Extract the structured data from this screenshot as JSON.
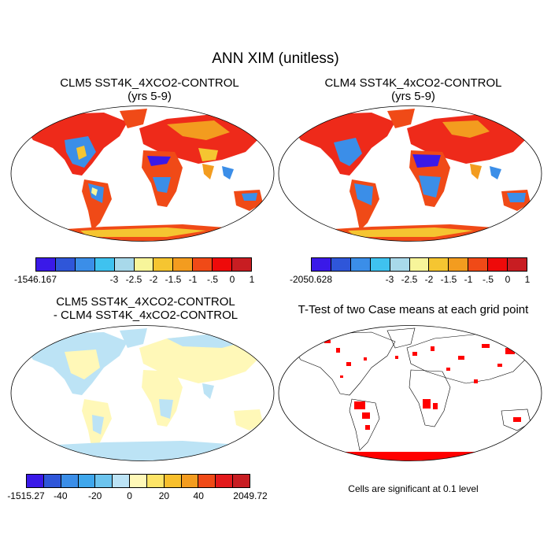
{
  "title": "ANN XIM (unitless)",
  "panels": {
    "p1": {
      "title1": "CLM5 SST4K_4XCO2-CONTROL",
      "title2": "(yrs 5-9)"
    },
    "p2": {
      "title1": "CLM4 SST4K_4xCO2-CONTROL",
      "title2": "(yrs 5-9)"
    },
    "p3": {
      "title1": "CLM5 SST4K_4XCO2-CONTROL",
      "title2": "- CLM4 SST4K_4xCO2-CONTROL"
    },
    "p4": {
      "title1": "T-Test of two Case means at each grid point",
      "note": "Cells are significant at 0.1 level"
    }
  },
  "colorbars": {
    "cb1": {
      "colors": [
        "#3a19e8",
        "#2f56d9",
        "#3b8ee8",
        "#3fc2ef",
        "#a8d9ea",
        "#f7f59a",
        "#f5c531",
        "#f39c1f",
        "#f04a17",
        "#ee0a0a",
        "#c81d22"
      ],
      "labels": [
        "-1546.167",
        "-3",
        "-2.5",
        "-2",
        "-1.5",
        "-1",
        "-.5",
        "0",
        "1"
      ]
    },
    "cb2": {
      "colors": [
        "#3a19e8",
        "#2f56d9",
        "#3b8ee8",
        "#3fc2ef",
        "#a8d9ea",
        "#f7f59a",
        "#f5c531",
        "#f39c1f",
        "#f04a17",
        "#ee0a0a",
        "#c81d22"
      ],
      "labels": [
        "-2050.628",
        "-3",
        "-2.5",
        "-2",
        "-1.5",
        "-1",
        "-.5",
        "0",
        "1"
      ]
    },
    "cb3": {
      "colors": [
        "#3a19e8",
        "#2f56d9",
        "#3b8ee8",
        "#3fa7ec",
        "#6cc4ee",
        "#bce3f5",
        "#fff8b8",
        "#fde467",
        "#f8bf2c",
        "#f39c1f",
        "#f04a17",
        "#e31a1c",
        "#c81d22"
      ],
      "labels": [
        "-1515.27",
        "-40",
        "-20",
        "0",
        "20",
        "40",
        "2049.72"
      ]
    }
  }
}
